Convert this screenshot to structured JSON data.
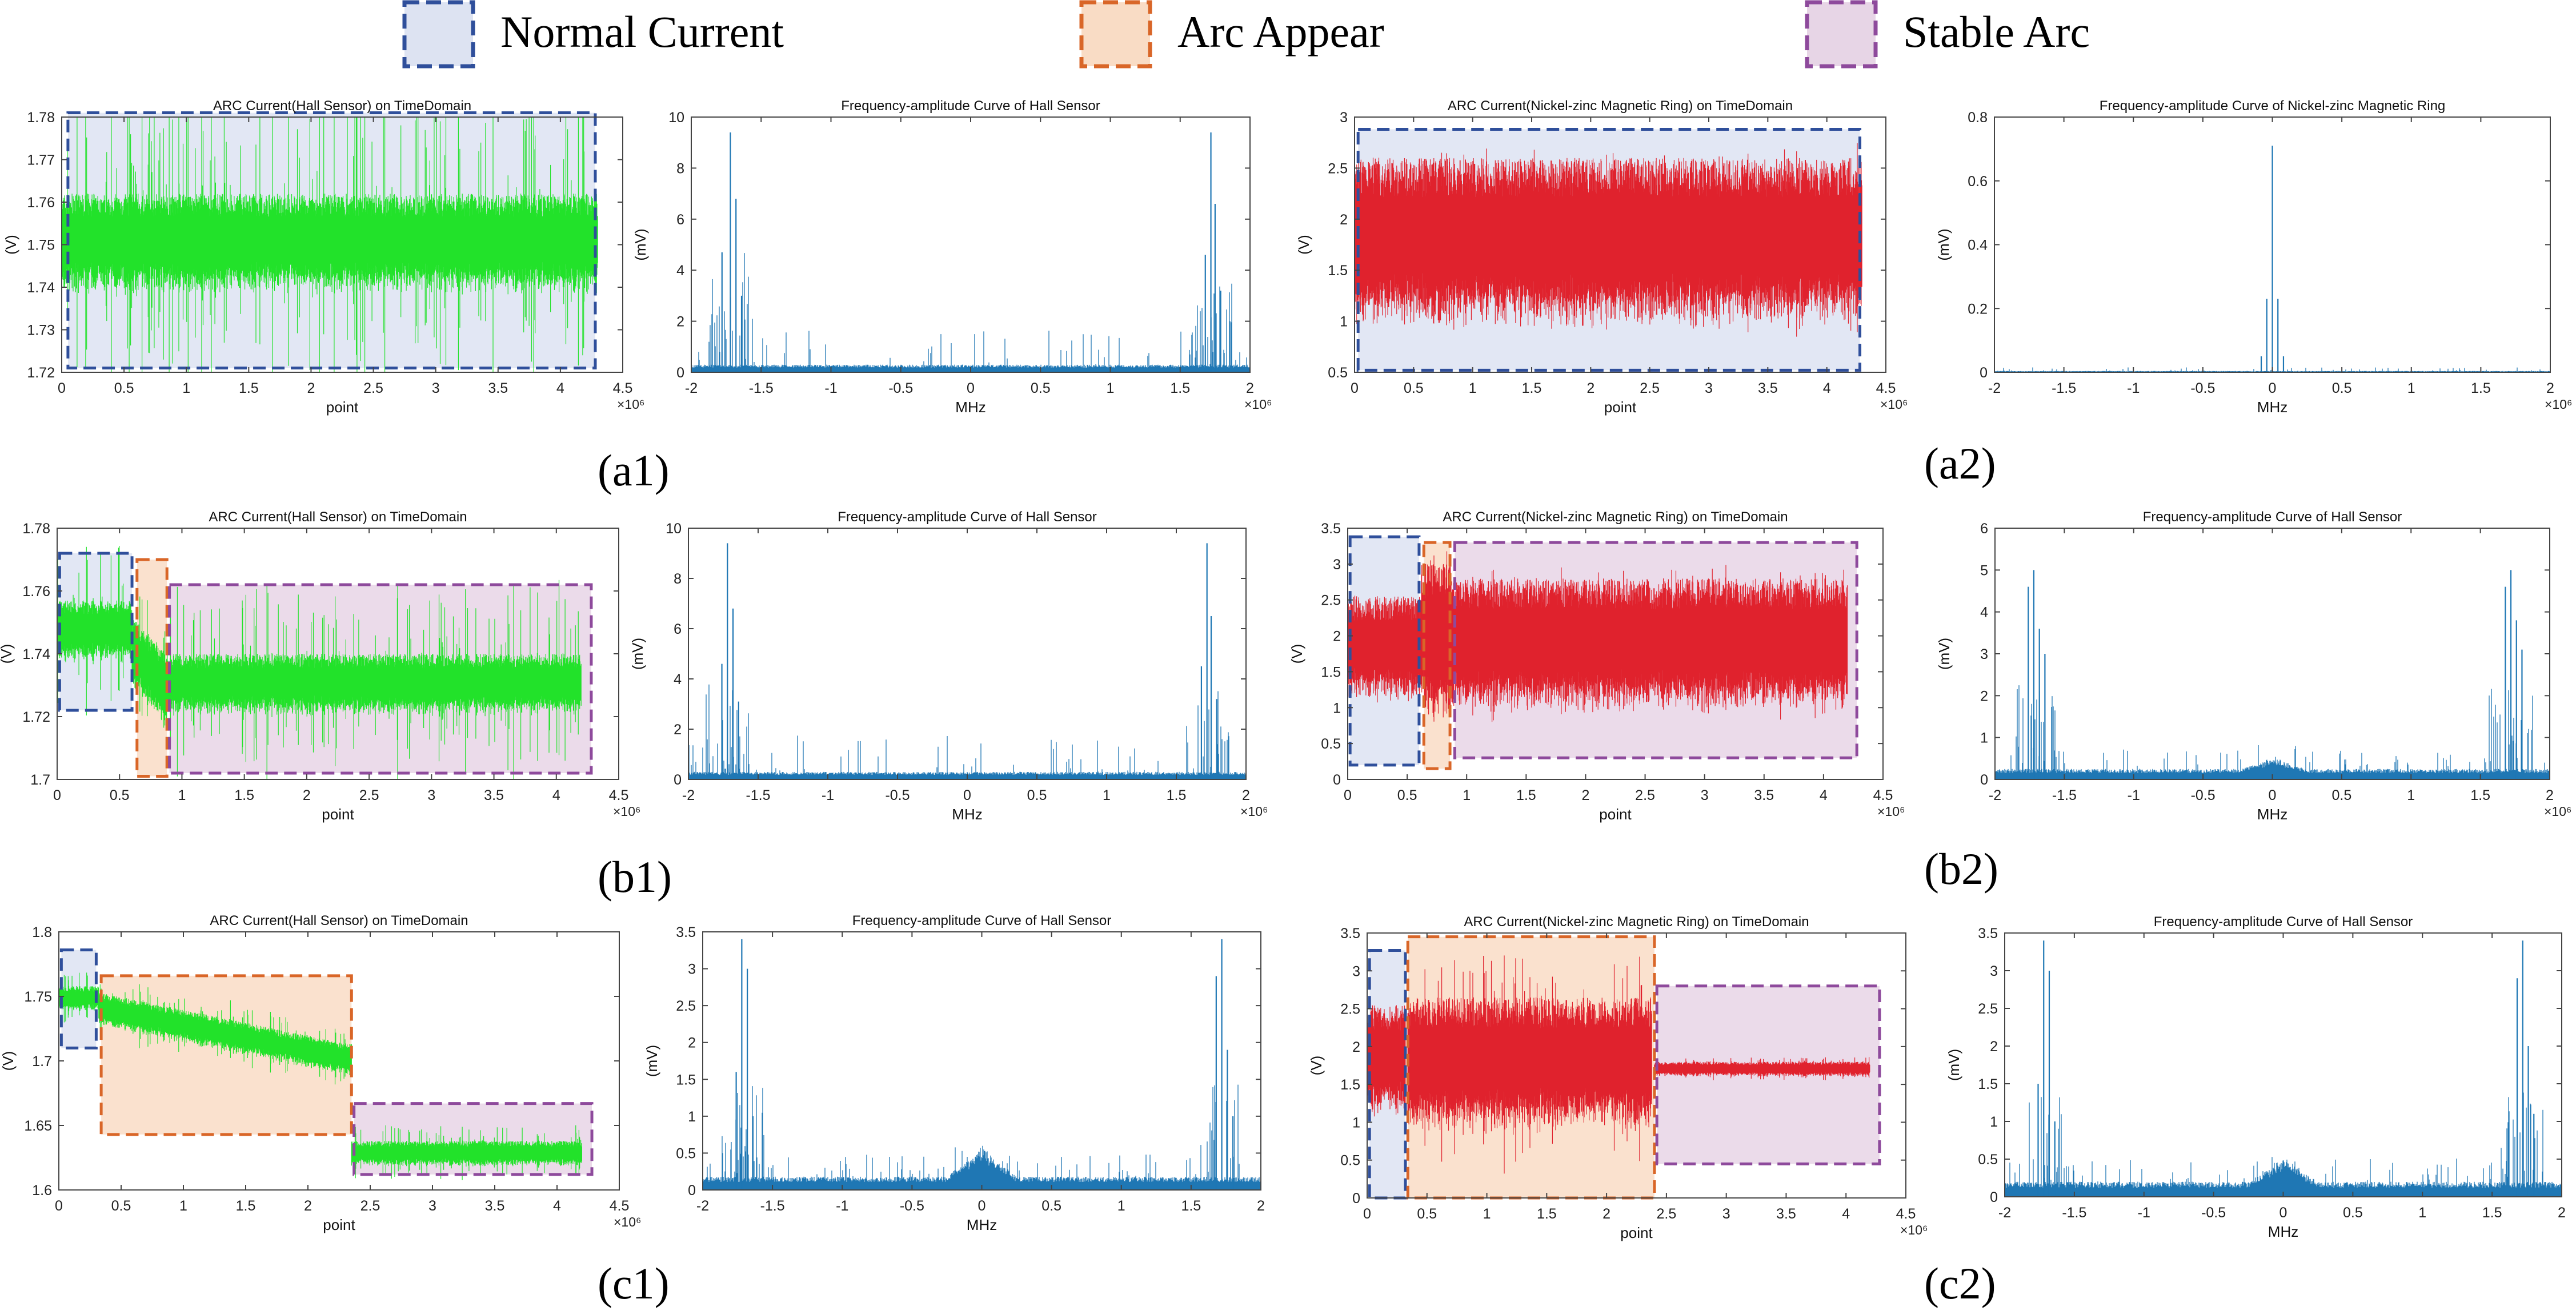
{
  "legend": {
    "items": [
      {
        "label": "Normal Current",
        "fill": "#dde3f2",
        "stroke": "#2f4f9b"
      },
      {
        "label": "Arc Appear",
        "fill": "#f9dcc5",
        "stroke": "#d96628"
      },
      {
        "label": "Stable Arc",
        "fill": "#e7d5e6",
        "stroke": "#8e4a9c"
      }
    ]
  },
  "colors": {
    "hall": "#22e22a",
    "ring": "#e0222d",
    "spectrum": "#1f77b4",
    "axis": "#444444"
  },
  "panel_labels": [
    "(a1)",
    "(a2)",
    "(b1)",
    "(b2)",
    "(c1)",
    "(c2)"
  ],
  "chart_data": [
    {
      "id": "a1-time",
      "type": "line",
      "signal": "hall",
      "title": "ARC Current(Hall Sensor) on TimeDomain",
      "xlabel": "point",
      "ylabel": "(V)",
      "xexp": "×10⁶",
      "xlim": [
        0,
        4.5
      ],
      "ylim": [
        1.72,
        1.78
      ],
      "xticks": [
        0,
        0.5,
        1,
        1.5,
        2,
        2.5,
        3,
        3.5,
        4,
        4.5
      ],
      "yticks": [
        1.72,
        1.73,
        1.74,
        1.75,
        1.76,
        1.77,
        1.78
      ],
      "xtick_labels": [
        "0",
        "0.5",
        "1",
        "1.5",
        "2",
        "2.5",
        "3",
        "3.5",
        "4",
        "4.5"
      ],
      "ytick_labels": [
        "1.72",
        "1.73",
        "1.74",
        "1.75",
        "1.76",
        "1.77",
        "1.78"
      ],
      "segments": [
        {
          "x0": 0,
          "x1": 4.3,
          "mean": 1.75,
          "amp": 0.012,
          "spike": 0.03
        }
      ],
      "regions": [
        {
          "kind": 0,
          "x0": 0.05,
          "x1": 4.28,
          "y0": 1.721,
          "y1": 1.781
        }
      ]
    },
    {
      "id": "a1-freq",
      "type": "bar",
      "signal": "spectrum",
      "title": "Frequency-amplitude Curve of Hall Sensor",
      "xlabel": "MHz",
      "ylabel": "(mV)",
      "xexp": "×10⁶",
      "xlim": [
        -2,
        2
      ],
      "ylim": [
        0,
        10
      ],
      "xticks": [
        -2,
        -1.5,
        -1,
        -0.5,
        0,
        0.5,
        1,
        1.5,
        2
      ],
      "yticks": [
        0,
        2,
        4,
        6,
        8,
        10
      ],
      "xtick_labels": [
        "-2",
        "-1.5",
        "-1",
        "-0.5",
        "0",
        "0.5",
        "1",
        "1.5",
        "2"
      ],
      "ytick_labels": [
        "0",
        "2",
        "4",
        "6",
        "8",
        "10"
      ],
      "spectrum": {
        "floor": 0.3,
        "noise": 1.4,
        "sideband": 3.5,
        "center_bump": 0,
        "peaks": [
          [
            -1.72,
            9.4
          ],
          [
            -1.68,
            6.8
          ],
          [
            -1.78,
            4.7
          ],
          [
            -1.64,
            3.0
          ],
          [
            1.72,
            9.4
          ],
          [
            1.75,
            6.6
          ],
          [
            1.68,
            4.6
          ],
          [
            1.79,
            3.2
          ]
        ]
      },
      "regions": []
    },
    {
      "id": "a2-time",
      "type": "line",
      "signal": "ring",
      "title": "ARC Current(Nickel-zinc Magnetic Ring) on TimeDomain",
      "xlabel": "point",
      "ylabel": "(V)",
      "xexp": "×10⁶",
      "xlim": [
        0,
        4.5
      ],
      "ylim": [
        0.5,
        3
      ],
      "xticks": [
        0,
        0.5,
        1,
        1.5,
        2,
        2.5,
        3,
        3.5,
        4,
        4.5
      ],
      "yticks": [
        0.5,
        1,
        1.5,
        2,
        2.5,
        3
      ],
      "xtick_labels": [
        "0",
        "0.5",
        "1",
        "1.5",
        "2",
        "2.5",
        "3",
        "3.5",
        "4",
        "4.5"
      ],
      "ytick_labels": [
        "0.5",
        "1",
        "1.5",
        "2",
        "2.5",
        "3"
      ],
      "segments": [
        {
          "x0": 0,
          "x1": 4.3,
          "mean": 1.75,
          "amp": 0.85,
          "spike": 0.15
        }
      ],
      "regions": [
        {
          "kind": 0,
          "x0": 0.03,
          "x1": 4.28,
          "y0": 0.52,
          "y1": 2.88
        }
      ]
    },
    {
      "id": "a2-freq",
      "type": "bar",
      "signal": "spectrum",
      "title": "Frequency-amplitude Curve of Nickel-zinc Magnetic Ring",
      "xlabel": "MHz",
      "ylabel": "(mV)",
      "xexp": "×10⁶",
      "xlim": [
        -2,
        2
      ],
      "ylim": [
        0,
        0.8
      ],
      "xticks": [
        -2,
        -1.5,
        -1,
        -0.5,
        0,
        0.5,
        1,
        1.5,
        2
      ],
      "yticks": [
        0,
        0.2,
        0.4,
        0.6,
        0.8
      ],
      "xtick_labels": [
        "-2",
        "-1.5",
        "-1",
        "-0.5",
        "0",
        "0.5",
        "1",
        "1.5",
        "2"
      ],
      "ytick_labels": [
        "0",
        "0.2",
        "0.4",
        "0.6",
        "0.8"
      ],
      "spectrum": {
        "floor": 0.004,
        "noise": 0.012,
        "sideband": 0,
        "center_bump": 0,
        "peaks": [
          [
            0,
            0.71
          ],
          [
            0.04,
            0.23
          ],
          [
            -0.04,
            0.23
          ],
          [
            0.08,
            0.05
          ],
          [
            -0.08,
            0.05
          ]
        ]
      },
      "regions": []
    },
    {
      "id": "b1-time",
      "type": "line",
      "signal": "hall",
      "title": "ARC Current(Hall Sensor) on TimeDomain",
      "xlabel": "point",
      "ylabel": "(V)",
      "xexp": "×10⁶",
      "xlim": [
        0,
        4.5
      ],
      "ylim": [
        1.7,
        1.78
      ],
      "xticks": [
        0,
        0.5,
        1,
        1.5,
        2,
        2.5,
        3,
        3.5,
        4,
        4.5
      ],
      "yticks": [
        1.7,
        1.72,
        1.74,
        1.76,
        1.78
      ],
      "xtick_labels": [
        "0",
        "0.5",
        "1",
        "1.5",
        "2",
        "2.5",
        "3",
        "3.5",
        "4",
        "4.5"
      ],
      "ytick_labels": [
        "1.7",
        "1.72",
        "1.74",
        "1.76",
        "1.78"
      ],
      "segments": [
        {
          "x0": 0,
          "x1": 0.6,
          "mean": 1.747,
          "amp": 0.01,
          "spike": 0.022
        },
        {
          "x0": 0.6,
          "x1": 0.88,
          "mean": 1.74,
          "amp": 0.012,
          "spike": 0.015,
          "meanEnd": 1.728
        },
        {
          "x0": 0.88,
          "x1": 4.2,
          "mean": 1.73,
          "amp": 0.01,
          "spike": 0.025
        }
      ],
      "regions": [
        {
          "kind": 0,
          "x0": 0.02,
          "x1": 0.6,
          "y0": 1.722,
          "y1": 1.772
        },
        {
          "kind": 1,
          "x0": 0.64,
          "x1": 0.88,
          "y0": 1.701,
          "y1": 1.77
        },
        {
          "kind": 2,
          "x0": 0.9,
          "x1": 4.28,
          "y0": 1.702,
          "y1": 1.762
        }
      ]
    },
    {
      "id": "b1-freq",
      "type": "bar",
      "signal": "spectrum",
      "title": "Frequency-amplitude Curve of Hall Sensor",
      "xlabel": "MHz",
      "ylabel": "(mV)",
      "xexp": "×10⁶",
      "xlim": [
        -2,
        2
      ],
      "ylim": [
        0,
        10
      ],
      "xticks": [
        -2,
        -1.5,
        -1,
        -0.5,
        0,
        0.5,
        1,
        1.5,
        2
      ],
      "yticks": [
        0,
        2,
        4,
        6,
        8,
        10
      ],
      "xtick_labels": [
        "-2",
        "-1.5",
        "-1",
        "-0.5",
        "0",
        "0.5",
        "1",
        "1.5",
        "2"
      ],
      "ytick_labels": [
        "0",
        "2",
        "4",
        "6",
        "8",
        "10"
      ],
      "spectrum": {
        "floor": 0.3,
        "noise": 1.5,
        "sideband": 3.5,
        "center_bump": 0,
        "peaks": [
          [
            -1.72,
            9.4
          ],
          [
            -1.68,
            6.8
          ],
          [
            -1.76,
            4.6
          ],
          [
            -1.64,
            3.1
          ],
          [
            1.72,
            9.4
          ],
          [
            1.75,
            6.5
          ],
          [
            1.68,
            4.5
          ],
          [
            1.79,
            3.2
          ]
        ]
      },
      "regions": []
    },
    {
      "id": "b2-time",
      "type": "line",
      "signal": "ring",
      "title": "ARC Current(Nickel-zinc Magnetic Ring) on TimeDomain",
      "xlabel": "point",
      "ylabel": "(V)",
      "xexp": "×10⁶",
      "xlim": [
        0,
        4.5
      ],
      "ylim": [
        0,
        3.5
      ],
      "xticks": [
        0,
        0.5,
        1,
        1.5,
        2,
        2.5,
        3,
        3.5,
        4,
        4.5
      ],
      "yticks": [
        0,
        0.5,
        1,
        1.5,
        2,
        2.5,
        3,
        3.5
      ],
      "xtick_labels": [
        "0",
        "0.5",
        "1",
        "1.5",
        "2",
        "2.5",
        "3",
        "3.5",
        "4",
        "4.5"
      ],
      "ytick_labels": [
        "0",
        "0.5",
        "1",
        "1.5",
        "2",
        "2.5",
        "3",
        "3.5"
      ],
      "segments": [
        {
          "x0": 0,
          "x1": 0.62,
          "mean": 1.8,
          "amp": 0.75,
          "spike": 0.12
        },
        {
          "x0": 0.62,
          "x1": 0.88,
          "mean": 1.9,
          "amp": 1.1,
          "spike": 0.4
        },
        {
          "x0": 0.88,
          "x1": 4.2,
          "mean": 1.85,
          "amp": 0.95,
          "spike": 0.2
        }
      ],
      "regions": [
        {
          "kind": 0,
          "x0": 0.02,
          "x1": 0.6,
          "y0": 0.2,
          "y1": 3.38
        },
        {
          "kind": 1,
          "x0": 0.64,
          "x1": 0.86,
          "y0": 0.15,
          "y1": 3.3
        },
        {
          "kind": 2,
          "x0": 0.9,
          "x1": 4.28,
          "y0": 0.3,
          "y1": 3.3
        }
      ]
    },
    {
      "id": "b2-freq",
      "type": "bar",
      "signal": "spectrum",
      "title": "Frequency-amplitude Curve of Hall Sensor",
      "xlabel": "MHz",
      "ylabel": "(mV)",
      "xexp": "×10⁶",
      "xlim": [
        -2,
        2
      ],
      "ylim": [
        0,
        6
      ],
      "xticks": [
        -2,
        -1.5,
        -1,
        -0.5,
        0,
        0.5,
        1,
        1.5,
        2
      ],
      "yticks": [
        0,
        1,
        2,
        3,
        4,
        5,
        6
      ],
      "xtick_labels": [
        "-2",
        "-1.5",
        "-1",
        "-0.5",
        "0",
        "0.5",
        "1",
        "1.5",
        "2"
      ],
      "ytick_labels": [
        "0",
        "1",
        "2",
        "3",
        "4",
        "5",
        "6"
      ],
      "spectrum": {
        "floor": 0.25,
        "noise": 0.5,
        "sideband": 2.0,
        "center_bump": 0.3,
        "peaks": [
          [
            -1.72,
            5.0
          ],
          [
            -1.76,
            4.6
          ],
          [
            -1.68,
            3.6
          ],
          [
            -1.64,
            3.0
          ],
          [
            1.72,
            5.0
          ],
          [
            1.68,
            4.6
          ],
          [
            1.76,
            3.8
          ],
          [
            1.8,
            3.1
          ]
        ]
      },
      "regions": []
    },
    {
      "id": "c1-time",
      "type": "line",
      "signal": "hall",
      "title": "ARC Current(Hall Sensor) on TimeDomain",
      "xlabel": "point",
      "ylabel": "(V)",
      "xexp": "×10⁶",
      "xlim": [
        0,
        4.5
      ],
      "ylim": [
        1.6,
        1.8
      ],
      "xticks": [
        0,
        0.5,
        1,
        1.5,
        2,
        2.5,
        3,
        3.5,
        4,
        4.5
      ],
      "yticks": [
        1.6,
        1.65,
        1.7,
        1.75,
        1.8
      ],
      "xtick_labels": [
        "0",
        "0.5",
        "1",
        "1.5",
        "2",
        "2.5",
        "3",
        "3.5",
        "4",
        "4.5"
      ],
      "ytick_labels": [
        "1.6",
        "1.65",
        "1.7",
        "1.75",
        "1.8"
      ],
      "segments": [
        {
          "x0": 0,
          "x1": 0.32,
          "mean": 1.748,
          "amp": 0.01,
          "spike": 0.015
        },
        {
          "x0": 0.32,
          "x1": 2.35,
          "mean": 1.74,
          "amp": 0.013,
          "spike": 0.015,
          "meanEnd": 1.7
        },
        {
          "x0": 2.35,
          "x1": 4.2,
          "mean": 1.628,
          "amp": 0.01,
          "spike": 0.015
        }
      ],
      "regions": [
        {
          "kind": 0,
          "x0": 0.02,
          "x1": 0.3,
          "y0": 1.71,
          "y1": 1.786
        },
        {
          "kind": 1,
          "x0": 0.34,
          "x1": 2.35,
          "y0": 1.643,
          "y1": 1.766
        },
        {
          "kind": 2,
          "x0": 2.37,
          "x1": 4.28,
          "y0": 1.612,
          "y1": 1.667
        }
      ]
    },
    {
      "id": "c1-freq",
      "type": "bar",
      "signal": "spectrum",
      "title": "Frequency-amplitude Curve of Hall Sensor",
      "xlabel": "MHz",
      "ylabel": "(mV)",
      "xexp": "",
      "xlim": [
        -2,
        2
      ],
      "ylim": [
        0,
        3.5
      ],
      "xticks": [
        -2,
        -1.5,
        -1,
        -0.5,
        0,
        0.5,
        1,
        1.5,
        2
      ],
      "yticks": [
        0,
        0.5,
        1,
        1.5,
        2,
        2.5,
        3,
        3.5
      ],
      "xtick_labels": [
        "-2",
        "-1.5",
        "-1",
        "-0.5",
        "0",
        "0.5",
        "1",
        "1.5",
        "2"
      ],
      "ytick_labels": [
        "0",
        "0.5",
        "1",
        "1.5",
        "2",
        "2.5",
        "3",
        "3.5"
      ],
      "spectrum": {
        "floor": 0.18,
        "noise": 0.35,
        "sideband": 1.3,
        "center_bump": 0.45,
        "peaks": [
          [
            -1.72,
            3.4
          ],
          [
            -1.68,
            3.0
          ],
          [
            -1.76,
            1.6
          ],
          [
            -1.64,
            1.0
          ],
          [
            1.72,
            3.4
          ],
          [
            1.68,
            2.9
          ],
          [
            1.76,
            1.9
          ],
          [
            1.8,
            1.0
          ]
        ]
      },
      "regions": []
    },
    {
      "id": "c2-time",
      "type": "line",
      "signal": "ring",
      "title": "ARC Current(Nickel-zinc Magnetic Ring) on TimeDomain",
      "xlabel": "point",
      "ylabel": "(V)",
      "xexp": "×10⁶",
      "xlim": [
        0,
        4.5
      ],
      "ylim": [
        0,
        3.5
      ],
      "xticks": [
        0,
        0.5,
        1,
        1.5,
        2,
        2.5,
        3,
        3.5,
        4,
        4.5
      ],
      "yticks": [
        0,
        0.5,
        1,
        1.5,
        2,
        2.5,
        3,
        3.5
      ],
      "xtick_labels": [
        "0",
        "0.5",
        "1",
        "1.5",
        "2",
        "2.5",
        "3",
        "3.5",
        "4",
        "4.5"
      ],
      "ytick_labels": [
        "0",
        "0.5",
        "1",
        "1.5",
        "2",
        "2.5",
        "3",
        "3.5"
      ],
      "segments": [
        {
          "x0": 0,
          "x1": 0.32,
          "mean": 1.8,
          "amp": 0.75,
          "spike": 0.1
        },
        {
          "x0": 0.34,
          "x1": 2.38,
          "mean": 1.75,
          "amp": 0.9,
          "spike": 0.7
        },
        {
          "x0": 2.4,
          "x1": 4.2,
          "mean": 1.7,
          "amp": 0.1,
          "spike": 0.08
        }
      ],
      "regions": [
        {
          "kind": 0,
          "x0": 0.02,
          "x1": 0.32,
          "y0": 0.0,
          "y1": 3.27
        },
        {
          "kind": 1,
          "x0": 0.34,
          "x1": 2.4,
          "y0": 0.0,
          "y1": 3.45
        },
        {
          "kind": 2,
          "x0": 2.42,
          "x1": 4.28,
          "y0": 0.45,
          "y1": 2.8
        }
      ]
    },
    {
      "id": "c2-freq",
      "type": "bar",
      "signal": "spectrum",
      "title": "Frequency-amplitude Curve of Hall Sensor",
      "xlabel": "MHz",
      "ylabel": "(mV)",
      "xexp": "",
      "xlim": [
        -2,
        2
      ],
      "ylim": [
        0,
        3.5
      ],
      "xticks": [
        -2,
        -1.5,
        -1,
        -0.5,
        0,
        0.5,
        1,
        1.5,
        2
      ],
      "yticks": [
        0,
        0.5,
        1,
        1.5,
        2,
        2.5,
        3,
        3.5
      ],
      "xtick_labels": [
        "-2",
        "-1.5",
        "-1",
        "-0.5",
        "0",
        "0.5",
        "1",
        "1.5",
        "2"
      ],
      "ytick_labels": [
        "0",
        "0.5",
        "1",
        "1.5",
        "2",
        "2.5",
        "3",
        "3.5"
      ],
      "spectrum": {
        "floor": 0.2,
        "noise": 0.35,
        "sideband": 1.2,
        "center_bump": 0.35,
        "peaks": [
          [
            -1.72,
            3.4
          ],
          [
            -1.68,
            3.0
          ],
          [
            -1.76,
            1.5
          ],
          [
            -1.64,
            1.0
          ],
          [
            1.72,
            3.4
          ],
          [
            1.68,
            2.9
          ],
          [
            1.76,
            2.0
          ],
          [
            1.8,
            1.1
          ]
        ]
      },
      "regions": []
    }
  ]
}
